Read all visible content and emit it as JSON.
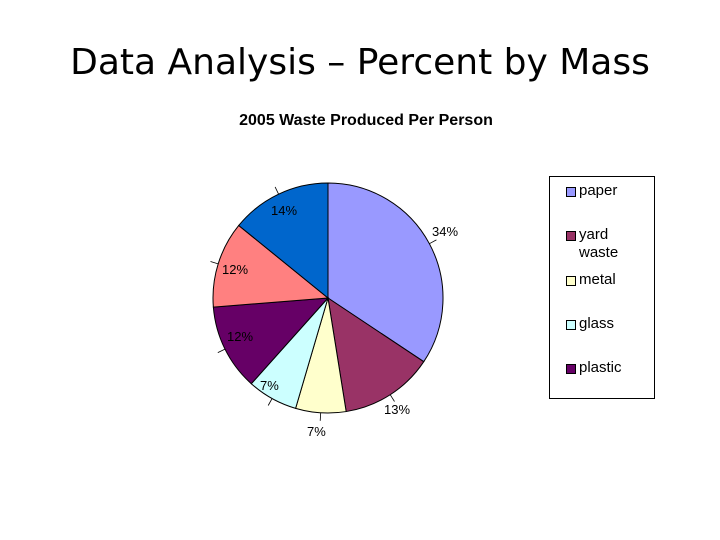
{
  "slide": {
    "title": "Data Analysis – Percent by Mass"
  },
  "chart_data": {
    "type": "pie",
    "title": "2005 Waste Produced Per Person",
    "slices": [
      {
        "name": "paper",
        "value": 34,
        "label": "34%",
        "color": "#9999FF"
      },
      {
        "name": "yard waste",
        "value": 13,
        "label": "13%",
        "color": "#993366"
      },
      {
        "name": "metal",
        "value": 7,
        "label": "7%",
        "color": "#FFFFCC"
      },
      {
        "name": "glass",
        "value": 7,
        "label": "7%",
        "color": "#CCFFFF"
      },
      {
        "name": "plastic",
        "value": 12,
        "label": "12%",
        "color": "#660066"
      },
      {
        "name": "",
        "value": 12,
        "label": "12%",
        "color": "#FF8080"
      },
      {
        "name": "",
        "value": 14,
        "label": "14%",
        "color": "#0066CC"
      }
    ],
    "legend": {
      "position": "right",
      "entries": [
        "paper",
        "yard waste",
        "metal",
        "glass",
        "plastic"
      ]
    }
  }
}
